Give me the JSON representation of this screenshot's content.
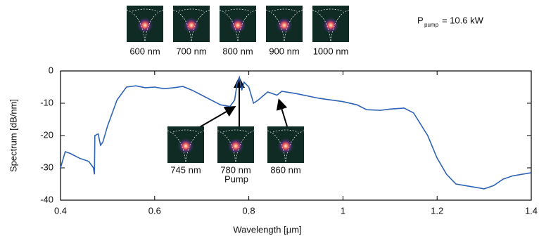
{
  "chart_data": {
    "type": "line",
    "x_label": "Wavelength [µm]",
    "y_label": "Spectrum [dB/nm]",
    "x": [
      0.4,
      0.41,
      0.42,
      0.44,
      0.46,
      0.47,
      0.472,
      0.473,
      0.48,
      0.485,
      0.49,
      0.5,
      0.52,
      0.54,
      0.56,
      0.58,
      0.6,
      0.62,
      0.64,
      0.66,
      0.68,
      0.7,
      0.72,
      0.74,
      0.76,
      0.77,
      0.775,
      0.78,
      0.785,
      0.79,
      0.8,
      0.81,
      0.82,
      0.84,
      0.86,
      0.87,
      0.9,
      0.95,
      1.0,
      1.03,
      1.05,
      1.08,
      1.1,
      1.13,
      1.15,
      1.18,
      1.2,
      1.22,
      1.24,
      1.26,
      1.28,
      1.3,
      1.32,
      1.34,
      1.36,
      1.38,
      1.4
    ],
    "values": [
      -30,
      -25,
      -25.5,
      -27,
      -28,
      -30,
      -32,
      -20,
      -19.5,
      -23,
      -22,
      -17,
      -9,
      -5,
      -4.6,
      -5.2,
      -5,
      -5.5,
      -5.2,
      -4.8,
      -6,
      -7.5,
      -9,
      -10.5,
      -11,
      -9,
      -4,
      -2,
      -6,
      -3.5,
      -5,
      -10,
      -9,
      -6.5,
      -7.5,
      -6.3,
      -7,
      -8.5,
      -9.5,
      -10.5,
      -12,
      -12.2,
      -11.8,
      -11.5,
      -13,
      -20,
      -27,
      -32,
      -35,
      -35.5,
      -36,
      -36.5,
      -35.5,
      -33.5,
      -32.5,
      -32,
      -31.5
    ],
    "color": "#2e63b5",
    "xlim": [
      0.4,
      1.4
    ],
    "xticks": [
      0.4,
      0.6,
      0.8,
      1.0,
      1.2,
      1.4
    ],
    "ylim": [
      -40,
      0
    ],
    "yticks": [
      0,
      -10,
      -20,
      -30,
      -40
    ],
    "pump_power": {
      "symbol": "P",
      "subscript": "pump",
      "text": "= 10.6 kW"
    },
    "top_insets": [
      "600 nm",
      "700 nm",
      "800 nm",
      "900 nm",
      "1000 nm"
    ],
    "bottom_insets": [
      "745 nm",
      "780 nm",
      "860 nm"
    ],
    "pump_note": "Pump"
  }
}
